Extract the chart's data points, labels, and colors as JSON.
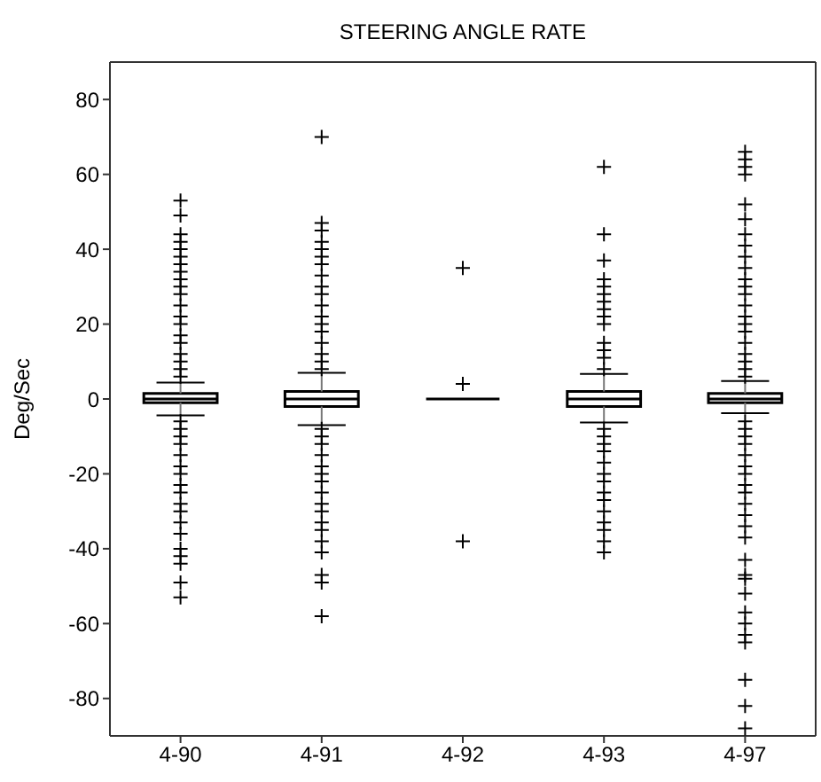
{
  "chart_data": {
    "type": "box",
    "title": "STEERING ANGLE RATE",
    "ylabel": "Deg/Sec",
    "categories": [
      "4-90",
      "4-91",
      "4-92",
      "4-93",
      "4-97"
    ],
    "ylim": [
      -90,
      90
    ],
    "yticks": [
      -80,
      -60,
      -40,
      -20,
      0,
      20,
      40,
      60,
      80
    ],
    "grid": false,
    "legend": false,
    "marker": "cross",
    "color": "#000000",
    "boxes": [
      {
        "low": -4.4,
        "q1": -1,
        "median": 0,
        "q3": 1.5,
        "high": 4.4,
        "outliers": [
          53,
          49,
          44,
          42,
          40,
          38,
          36,
          34,
          32,
          30,
          28,
          25,
          22,
          20,
          17,
          15,
          12,
          10,
          8,
          6,
          -6,
          -8,
          -10,
          -12,
          -15,
          -18,
          -20,
          -23,
          -25,
          -28,
          -30,
          -33,
          -36,
          -40,
          -42,
          -44,
          -49,
          -53
        ]
      },
      {
        "low": -7,
        "q1": -2,
        "median": 0,
        "q3": 2,
        "high": 7,
        "outliers": [
          70,
          47,
          45,
          42,
          40,
          38,
          36,
          33,
          30,
          28,
          25,
          22,
          20,
          18,
          15,
          12,
          10,
          8,
          -8,
          -10,
          -12,
          -15,
          -18,
          -20,
          -22,
          -25,
          -28,
          -30,
          -33,
          -35,
          -38,
          -41,
          -47,
          -49,
          -58
        ]
      },
      {
        "low": 0,
        "q1": 0,
        "median": 0,
        "q3": 0,
        "high": 0,
        "outliers": [
          35,
          4,
          -38
        ]
      },
      {
        "low": -6.3,
        "q1": -2,
        "median": 0,
        "q3": 2,
        "high": 6.7,
        "outliers": [
          62,
          44,
          37,
          32,
          30,
          28,
          26,
          24,
          22,
          20,
          15,
          13,
          11,
          8,
          -8,
          -10,
          -12,
          -14,
          -17,
          -20,
          -22,
          -25,
          -27,
          -30,
          -33,
          -35,
          -38,
          -41
        ]
      },
      {
        "low": -3.8,
        "q1": -1,
        "median": 0,
        "q3": 1.5,
        "high": 4.8,
        "outliers": [
          66,
          64,
          62,
          60,
          52,
          48,
          44,
          41,
          38,
          35,
          32,
          30,
          28,
          25,
          22,
          20,
          18,
          15,
          12,
          10,
          8,
          6,
          -6,
          -8,
          -10,
          -12,
          -15,
          -18,
          -20,
          -23,
          -25,
          -28,
          -31,
          -34,
          -37,
          -43,
          -47,
          -48,
          -52,
          -57,
          -60,
          -63,
          -65,
          -75,
          -82,
          -88
        ]
      }
    ]
  }
}
